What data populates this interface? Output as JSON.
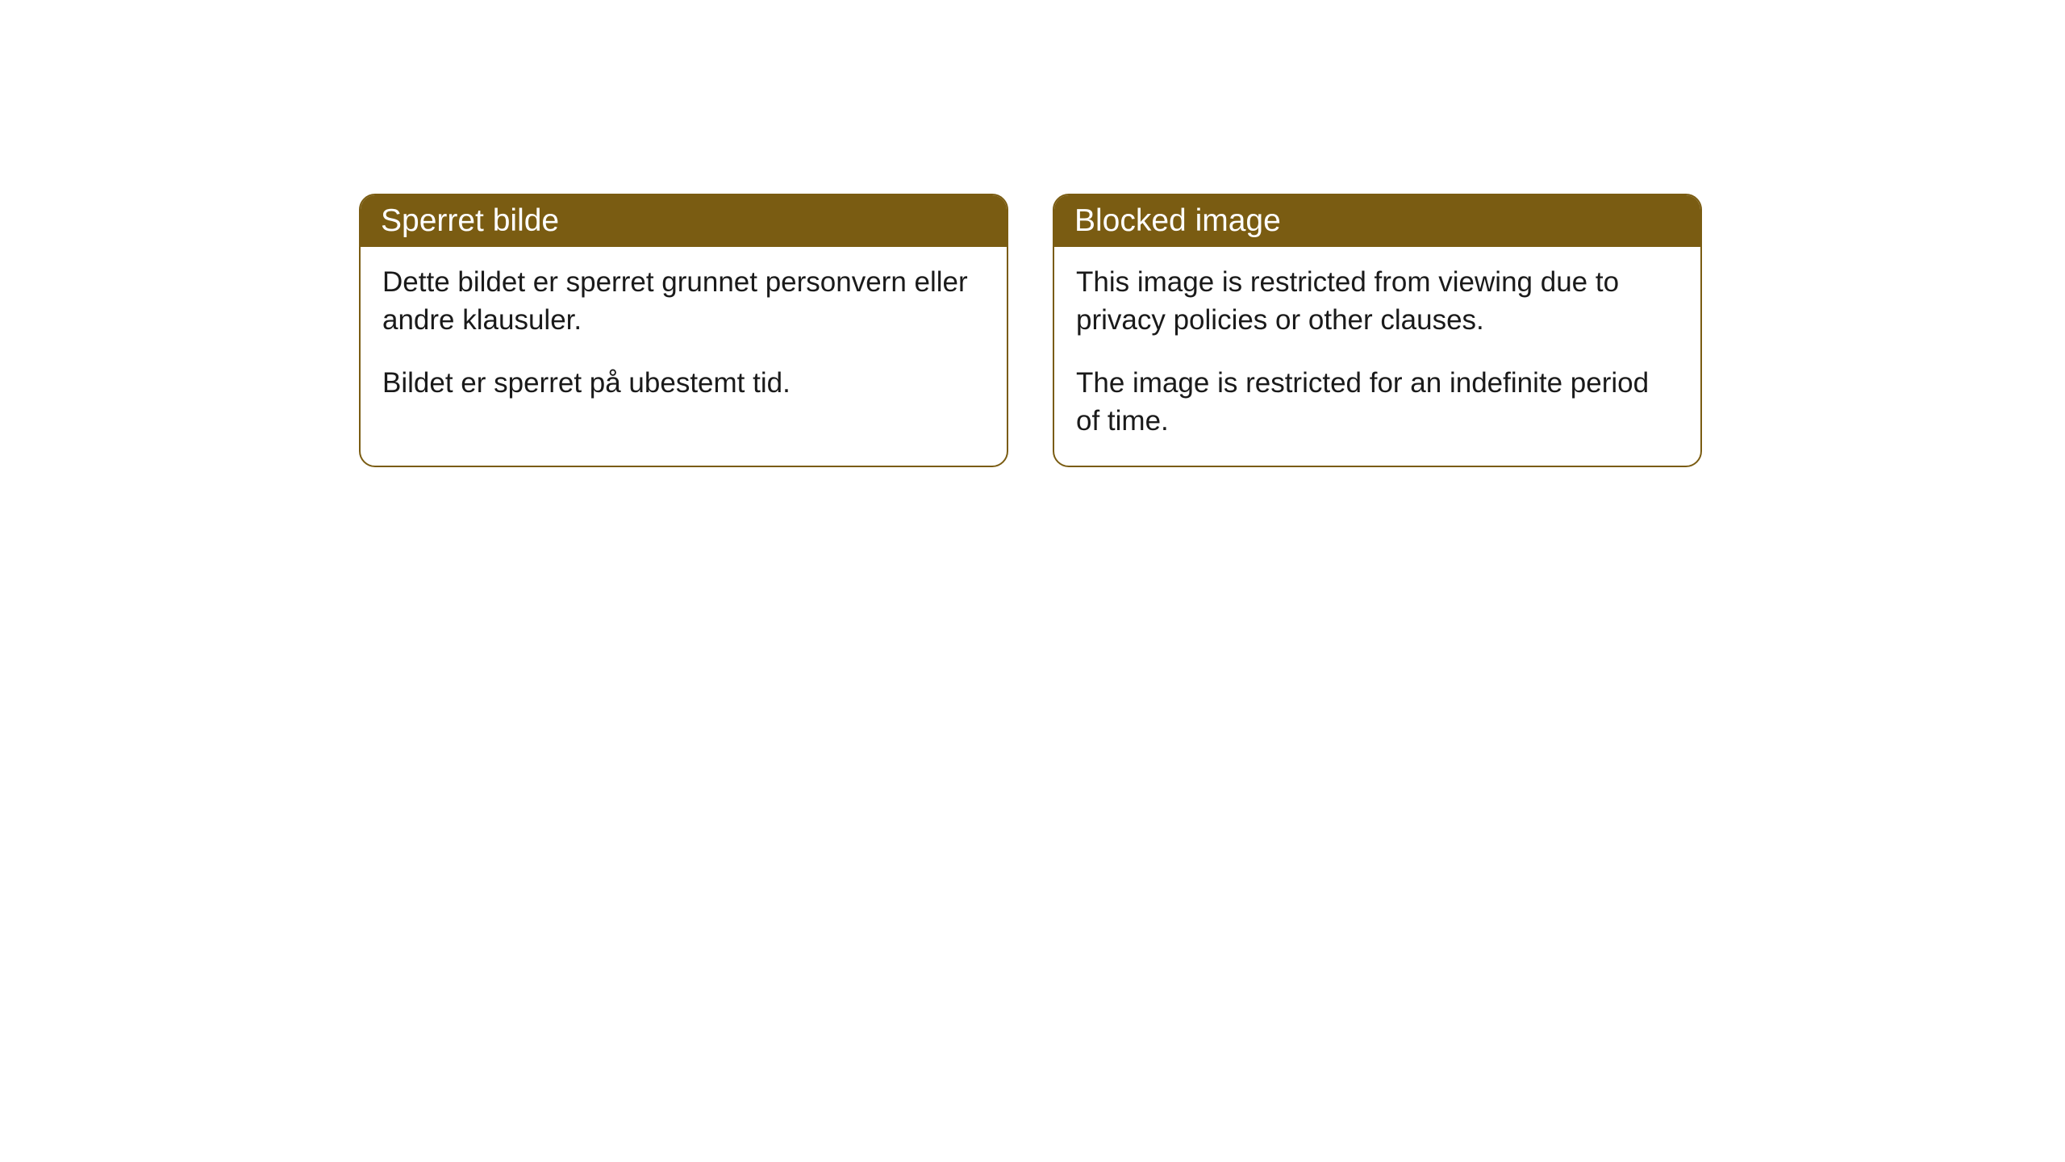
{
  "cards": [
    {
      "header": "Sperret bilde",
      "paragraph1": "Dette bildet er sperret grunnet personvern eller andre klausuler.",
      "paragraph2": "Bildet er sperret på ubestemt tid."
    },
    {
      "header": "Blocked image",
      "paragraph1": "This image is restricted from viewing due to privacy policies or other clauses.",
      "paragraph2": "The image is restricted for an indefinite period of time."
    }
  ],
  "style": {
    "header_bg_color": "#7a5c12",
    "header_text_color": "#ffffff",
    "border_color": "#7a5c12",
    "body_bg_color": "#ffffff",
    "body_text_color": "#1a1a1a",
    "border_radius": 20,
    "header_fontsize": 39,
    "body_fontsize": 35
  }
}
